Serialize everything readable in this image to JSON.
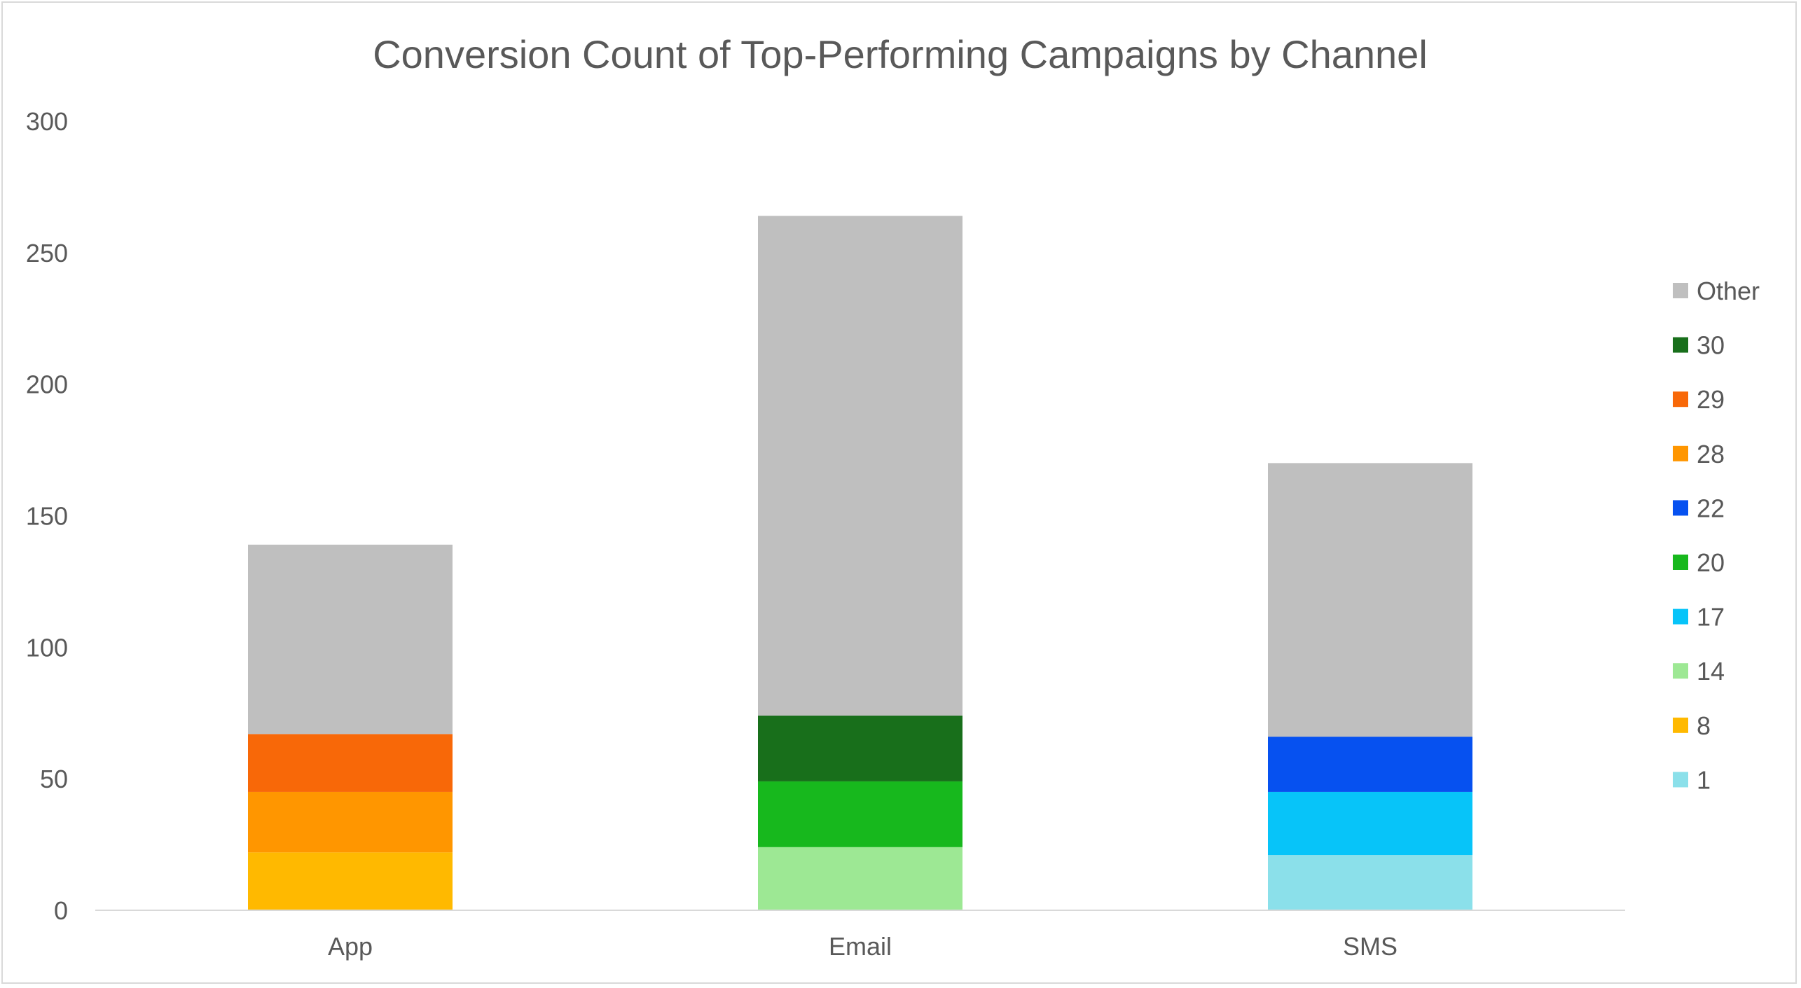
{
  "chart_data": {
    "type": "bar",
    "stacked": true,
    "title": "Conversion Count of Top-Performing Campaigns by Channel",
    "xlabel": "",
    "ylabel": "",
    "categories": [
      "App",
      "Email",
      "SMS"
    ],
    "ylim": [
      0,
      300
    ],
    "yticks": [
      0,
      50,
      100,
      150,
      200,
      250,
      300
    ],
    "grid": false,
    "legend_placement": "right",
    "legend_order": [
      "Other",
      "30",
      "29",
      "28",
      "22",
      "20",
      "17",
      "14",
      "8",
      "1"
    ],
    "series": [
      {
        "name": "1",
        "color": "#8be0ea",
        "values": [
          0,
          0,
          21
        ]
      },
      {
        "name": "8",
        "color": "#ffb900",
        "values": [
          22,
          0,
          0
        ]
      },
      {
        "name": "14",
        "color": "#9de894",
        "values": [
          0,
          24,
          0
        ]
      },
      {
        "name": "17",
        "color": "#07c4f9",
        "values": [
          0,
          0,
          24
        ]
      },
      {
        "name": "20",
        "color": "#17b81d",
        "values": [
          0,
          25,
          0
        ]
      },
      {
        "name": "22",
        "color": "#0651f0",
        "values": [
          0,
          0,
          21
        ]
      },
      {
        "name": "28",
        "color": "#ff9600",
        "values": [
          23,
          0,
          0
        ]
      },
      {
        "name": "29",
        "color": "#f86808",
        "values": [
          22,
          0,
          0
        ]
      },
      {
        "name": "30",
        "color": "#186f1b",
        "values": [
          0,
          25,
          0
        ]
      },
      {
        "name": "Other",
        "color": "#bfbfbf",
        "values": [
          72,
          190,
          104
        ]
      }
    ]
  }
}
